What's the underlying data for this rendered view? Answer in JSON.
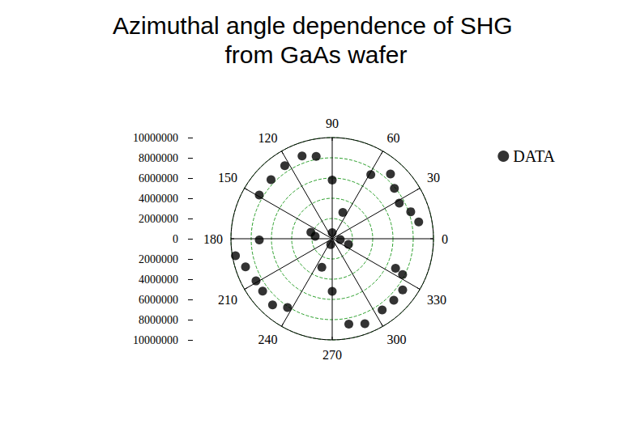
{
  "chart_data": {
    "type": "scatter",
    "title": "Azimuthal angle dependence of SHG from GaAs wafer",
    "xlim": [
      0,
      360
    ],
    "xticks": [
      0,
      30,
      60,
      90,
      120,
      150,
      180,
      210,
      240,
      270,
      300,
      330
    ],
    "ylim": [
      0,
      10000000
    ],
    "yticks": [
      0,
      2000000,
      4000000,
      6000000,
      8000000,
      10000000
    ],
    "grid": true,
    "legend": "top-right",
    "series": [
      {
        "name": "DATA",
        "color": "#000000",
        "marker": "circle",
        "x": [
          110,
          101,
          123,
          136,
          149,
          59,
          48,
          39,
          28,
          19,
          11,
          90,
          68,
          181,
          190,
          198,
          209,
          217,
          228,
          237,
          281,
          291,
          305,
          315,
          324,
          333,
          335,
          270,
          250,
          163,
          172,
          90,
          354,
          256,
          341
        ],
        "values": [
          8700000,
          8300000,
          8600000,
          8400000,
          8400000,
          7400000,
          8600000,
          7900000,
          7500000,
          8200000,
          8700000,
          5800000,
          2800000,
          7200000,
          9700000,
          9000000,
          8600000,
          8600000,
          8800000,
          8100000,
          8600000,
          9000000,
          8600000,
          8600000,
          8600000,
          7800000,
          6900000,
          5200000,
          3000000,
          2200000,
          1700000,
          600000,
          800000,
          600000,
          1700000
        ]
      }
    ]
  }
}
